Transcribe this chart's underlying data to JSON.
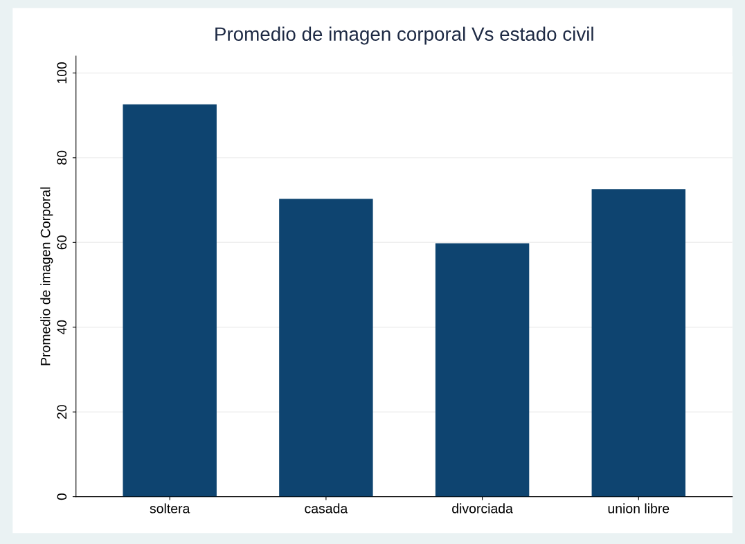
{
  "chart_data": {
    "type": "bar",
    "title": "Promedio de imagen corporal Vs estado civil",
    "ylabel": "Promedio de imagen Corporal",
    "categories": [
      "soltera",
      "casada",
      "divorciada",
      "union libre"
    ],
    "values": [
      92.6,
      70.3,
      59.8,
      72.6
    ],
    "color": "#0e4470",
    "ylim": [
      0,
      104
    ],
    "yticks": [
      0,
      20,
      40,
      60,
      80,
      100
    ],
    "grid": "y"
  }
}
